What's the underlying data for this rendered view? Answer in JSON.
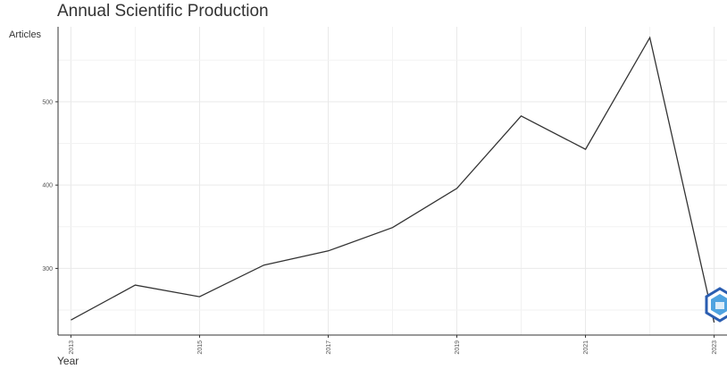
{
  "chart_data": {
    "type": "line",
    "title": "Annual Scientific Production",
    "xlabel": "Year",
    "ylabel": "Articles",
    "x": [
      2013,
      2014,
      2015,
      2016,
      2017,
      2018,
      2019,
      2020,
      2021,
      2022,
      2023
    ],
    "values": [
      238,
      280,
      266,
      304,
      321,
      349,
      396,
      483,
      443,
      577,
      235
    ],
    "x_ticks": [
      "2013",
      "2015",
      "2017",
      "2019",
      "2021",
      "2023"
    ],
    "y_ticks": [
      "300",
      "400",
      "500"
    ],
    "xlim": [
      2012.8,
      2023.2
    ],
    "ylim": [
      220,
      590
    ],
    "grid": true,
    "line_color": "#333333",
    "logo_colors": [
      "#2a5db0",
      "#4fa3e0"
    ]
  }
}
